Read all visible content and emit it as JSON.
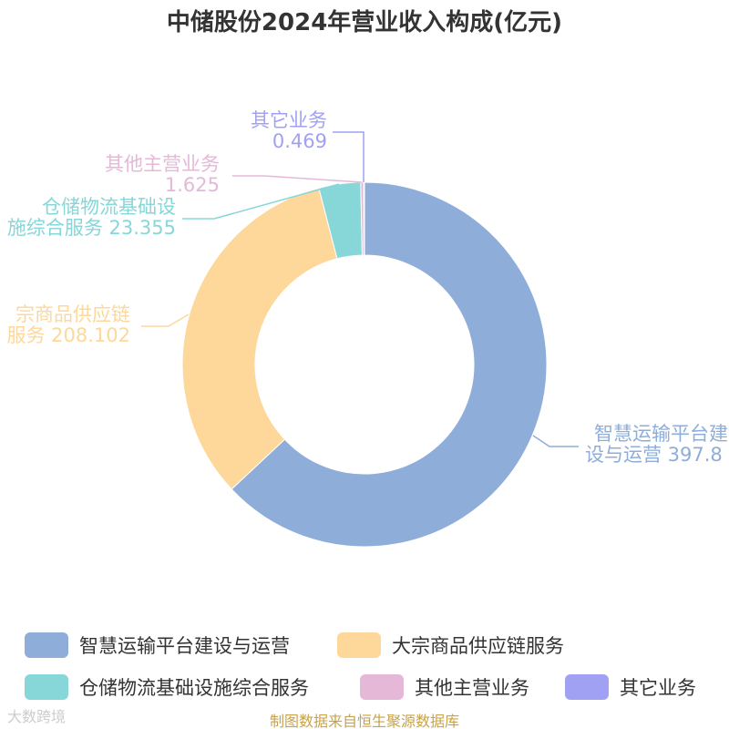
{
  "chart_data": {
    "type": "pie",
    "variant": "donut",
    "title": "中储股份2024年营业收入构成(亿元)",
    "slices": [
      {
        "name": "智慧运输平台建设与运营",
        "label_lines": [
          "智慧运输平台建",
          "设与运营 397.8"
        ],
        "value": 397.8,
        "color": "#8eadd9"
      },
      {
        "name": "大宗商品供应链服务",
        "label_lines": [
          "宗商品供应链",
          "服务 208.102"
        ],
        "value": 208.102,
        "color": "#fdd89a"
      },
      {
        "name": "仓储物流基础设施综合服务",
        "label_lines": [
          "仓储物流基础设",
          "施综合服务 23.355"
        ],
        "value": 23.355,
        "color": "#87d6d8"
      },
      {
        "name": "其他主营业务",
        "label_lines": [
          "其他主营业务",
          "1.625"
        ],
        "value": 1.625,
        "color": "#e5b8d8"
      },
      {
        "name": "其它业务",
        "label_lines": [
          "其它业务",
          "0.469"
        ],
        "value": 0.469,
        "color": "#a1a1f3"
      }
    ],
    "legend_position": "bottom"
  },
  "source": "制图数据来自恒生聚源数据库",
  "watermark": "大数跨境"
}
